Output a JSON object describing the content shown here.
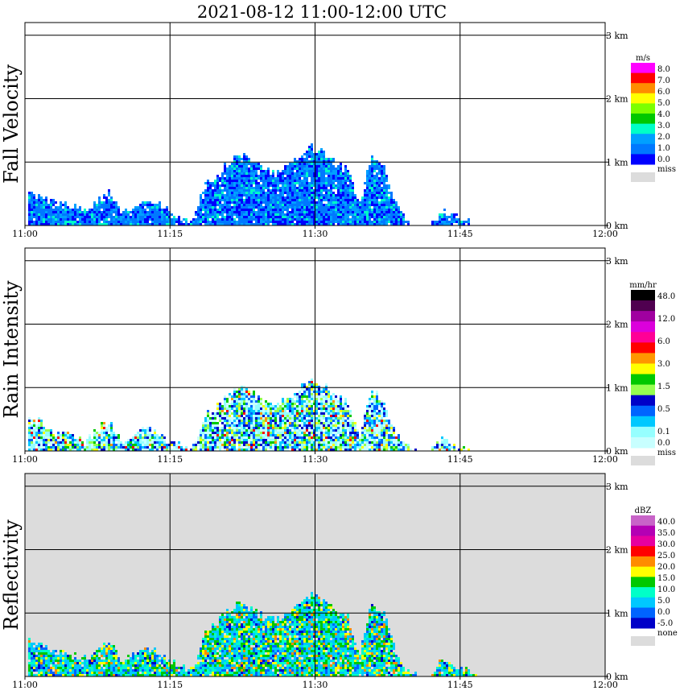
{
  "title": "2021-08-12   11:00-12:00 UTC",
  "chart_data": [
    {
      "type": "heatmap",
      "ylabel": "Fall Velocity",
      "units": "m/s",
      "background": "#ffffff",
      "xticks": [
        "11:00",
        "11:15",
        "11:30",
        "11:45",
        "12:00"
      ],
      "yticks": [
        "0 km",
        "1 km",
        "2 km",
        "3 km"
      ],
      "xlim": [
        "11:00",
        "12:00"
      ],
      "ylim_km": [
        0,
        3.2
      ],
      "grid": true,
      "legend": {
        "labels": [
          "8.0",
          "7.0",
          "6.0",
          "5.0",
          "4.0",
          "3.0",
          "2.0",
          "1.0",
          "0.0"
        ],
        "colors": [
          "#ff00ff",
          "#ff0000",
          "#ff8c00",
          "#ffff00",
          "#7dff00",
          "#00c800",
          "#00ffc8",
          "#00a0ff",
          "#0078ff",
          "#0000ff"
        ],
        "miss": "miss",
        "miss_color": "#dcdcdc"
      },
      "echo": {
        "top_km": [
          0.55,
          0.5,
          0.4,
          0.35,
          0.3,
          0.25,
          0.4,
          0.55,
          0.2,
          0.3,
          0.45,
          0.35,
          0.25,
          0.15,
          0.1,
          0.65,
          0.8,
          1.0,
          1.15,
          1.05,
          0.9,
          0.85,
          0.95,
          1.1,
          1.25,
          1.15,
          1.0,
          0.95,
          0.3,
          1.1,
          1.0,
          0.4,
          0.1,
          0.0,
          0.0,
          0.25,
          0.18,
          0.08,
          0.0,
          0.0
        ],
        "colors": [
          "#0078ff",
          "#00a0ff",
          "#0000ff",
          "#00ffc8",
          "#0078ff"
        ],
        "weights": [
          0.35,
          0.25,
          0.25,
          0.1,
          0.05
        ]
      }
    },
    {
      "type": "heatmap",
      "ylabel": "Rain Intensity",
      "units": "mm/hr",
      "background": "#ffffff",
      "xticks": [
        "11:00",
        "11:15",
        "11:30",
        "11:45",
        "12:00"
      ],
      "yticks": [
        "0 km",
        "1 km",
        "2 km",
        "3 km"
      ],
      "xlim": [
        "11:00",
        "12:00"
      ],
      "ylim_km": [
        0,
        3.2
      ],
      "grid": true,
      "legend": {
        "labels": [
          "48.0",
          "",
          "12.0",
          "",
          "6.0",
          "",
          "3.0",
          "",
          "1.5",
          "",
          "0.5",
          "",
          "0.1",
          "0.0"
        ],
        "colors": [
          "#000000",
          "#500050",
          "#a000a0",
          "#dc00dc",
          "#ff0096",
          "#ff0000",
          "#ff9600",
          "#ffff00",
          "#00c800",
          "#96ff50",
          "#0000c8",
          "#0064ff",
          "#00c8ff",
          "#96ffff",
          "#c8ffff"
        ],
        "miss": "miss",
        "miss_color": "#dcdcdc"
      },
      "echo": {
        "top_km": [
          0.55,
          0.5,
          0.35,
          0.3,
          0.25,
          0.2,
          0.35,
          0.5,
          0.15,
          0.25,
          0.4,
          0.3,
          0.2,
          0.1,
          0.08,
          0.55,
          0.7,
          0.9,
          1.05,
          0.95,
          0.8,
          0.75,
          0.85,
          1.0,
          1.15,
          1.05,
          0.9,
          0.8,
          0.25,
          0.95,
          0.85,
          0.3,
          0.08,
          0.0,
          0.0,
          0.2,
          0.12,
          0.05,
          0.0,
          0.0
        ],
        "colors": [
          "#c8ffff",
          "#96ffff",
          "#00c8ff",
          "#0064ff",
          "#0000c8",
          "#96ff50",
          "#00c800",
          "#ffff00",
          "#ff9600",
          "#ff0000"
        ],
        "weights": [
          0.2,
          0.2,
          0.15,
          0.12,
          0.1,
          0.08,
          0.07,
          0.04,
          0.02,
          0.02
        ]
      }
    },
    {
      "type": "heatmap",
      "ylabel": "Reflectivity",
      "units": "dBZ",
      "background": "#dcdcdc",
      "xticks": [
        "11:00",
        "11:15",
        "11:30",
        "11:45",
        "12:00"
      ],
      "yticks": [
        "0 km",
        "1 km",
        "2 km",
        "3 km"
      ],
      "xlim": [
        "11:00",
        "12:00"
      ],
      "ylim_km": [
        0,
        3.2
      ],
      "grid": true,
      "legend": {
        "labels": [
          "40.0",
          "35.0",
          "30.0",
          "25.0",
          "20.0",
          "15.0",
          "10.0",
          "5.0",
          "0.0",
          "-5.0"
        ],
        "colors": [
          "#c864c8",
          "#b400b4",
          "#e600a0",
          "#ff0000",
          "#ff8c00",
          "#ffff00",
          "#00c800",
          "#00ffc8",
          "#00c8ff",
          "#0064ff",
          "#0000c8"
        ],
        "miss": "none",
        "miss_color": "#dcdcdc"
      },
      "echo": {
        "top_km": [
          0.6,
          0.55,
          0.45,
          0.4,
          0.35,
          0.3,
          0.45,
          0.6,
          0.25,
          0.35,
          0.5,
          0.4,
          0.3,
          0.2,
          0.12,
          0.7,
          0.85,
          1.05,
          1.2,
          1.1,
          0.95,
          0.9,
          1.0,
          1.15,
          1.3,
          1.2,
          1.05,
          1.0,
          0.35,
          1.15,
          1.05,
          0.45,
          0.12,
          0.0,
          0.0,
          0.3,
          0.2,
          0.1,
          0.0,
          0.0
        ],
        "colors": [
          "#00c8ff",
          "#00ffc8",
          "#00c800",
          "#0064ff",
          "#ffff00",
          "#0000c8",
          "#ff8c00"
        ],
        "weights": [
          0.3,
          0.2,
          0.18,
          0.12,
          0.1,
          0.05,
          0.05
        ]
      }
    }
  ]
}
